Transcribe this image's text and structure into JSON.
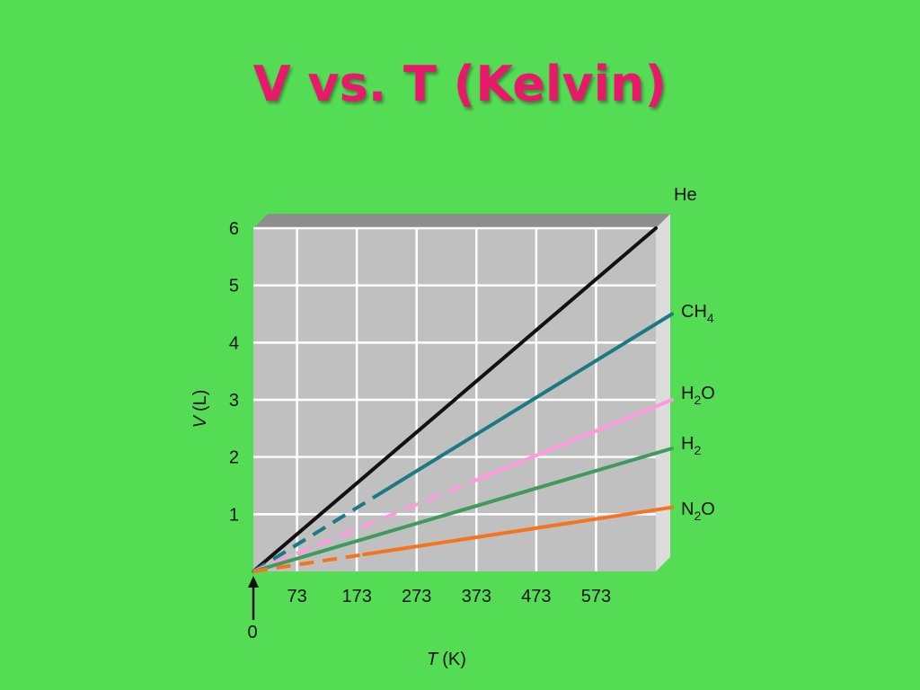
{
  "title": "V vs. T (Kelvin)",
  "chart_data": {
    "type": "line",
    "title": "V vs. T (Kelvin)",
    "xlabel_var": "T",
    "xlabel_unit": "(K)",
    "ylabel_var": "V",
    "ylabel_unit": "(L)",
    "x_ticks": [
      "73",
      "173",
      "273",
      "373",
      "473",
      "573"
    ],
    "x_origin_label": "0",
    "y_ticks": [
      "1",
      "2",
      "3",
      "4",
      "5",
      "6"
    ],
    "xlim": [
      0,
      673
    ],
    "ylim": [
      0,
      6
    ],
    "grid": true,
    "series": [
      {
        "name": "He",
        "label_base": "He",
        "label_sub": "",
        "label_tail": "",
        "color": "#111111",
        "points": [
          [
            0,
            0
          ],
          [
            673,
            6.0
          ]
        ],
        "extrapolated_below": 0
      },
      {
        "name": "CH4",
        "label_base": "CH",
        "label_sub": "4",
        "label_tail": "",
        "color": "#1a7a82",
        "points": [
          [
            0,
            0
          ],
          [
            700,
            4.5
          ]
        ],
        "extrapolated_below": 210
      },
      {
        "name": "H2O",
        "label_base": "H",
        "label_sub": "2",
        "label_tail": "O",
        "color": "#ff99dd",
        "points": [
          [
            0,
            0
          ],
          [
            700,
            3.0
          ]
        ],
        "extrapolated_below": 373
      },
      {
        "name": "H2",
        "label_base": "H",
        "label_sub": "2",
        "label_tail": "",
        "color": "#3e9a5e",
        "points": [
          [
            0,
            0
          ],
          [
            700,
            2.15
          ]
        ],
        "extrapolated_below": 0
      },
      {
        "name": "N2O",
        "label_base": "N",
        "label_sub": "2",
        "label_tail": "O",
        "color": "#f57420",
        "points": [
          [
            0,
            0
          ],
          [
            700,
            1.12
          ]
        ],
        "extrapolated_below": 185
      }
    ]
  },
  "colors": {
    "background": "#55dc55",
    "title": "#e8196b",
    "plot_face": "#c0c0c0",
    "plot_top": "#8e8e8e",
    "plot_side": "#dcdcdc",
    "grid": "#ffffff"
  },
  "icons": {
    "origin_marker": "up-arrow-icon"
  }
}
